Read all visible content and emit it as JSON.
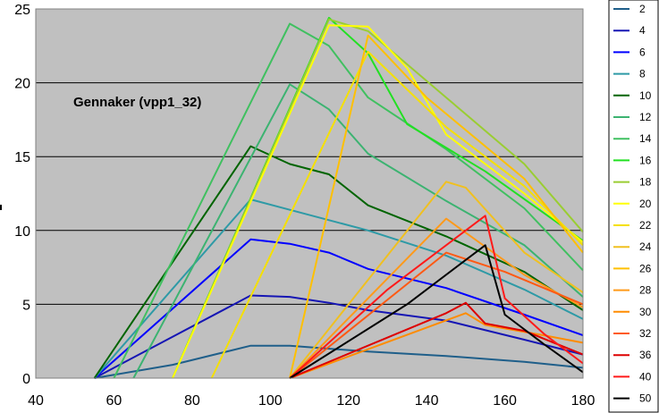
{
  "chart_data": {
    "type": "line",
    "title": "",
    "annotation": "Gennaker (vpp1_32)",
    "xlabel": "",
    "ylabel": "",
    "xlim": [
      40,
      180
    ],
    "ylim": [
      0,
      25
    ],
    "x_ticks": [
      40,
      60,
      80,
      100,
      120,
      140,
      160,
      180
    ],
    "y_ticks": [
      0,
      5,
      10,
      15,
      20,
      25
    ],
    "grid": "horizontal",
    "legend_position": "right",
    "background": "#c0c0c0",
    "series": [
      {
        "name": "2",
        "color": "#1f5f8a",
        "points": [
          [
            55,
            0
          ],
          [
            75,
            0.9
          ],
          [
            95,
            2.2
          ],
          [
            105,
            2.2
          ],
          [
            125,
            1.8
          ],
          [
            145,
            1.5
          ],
          [
            165,
            1.1
          ],
          [
            180,
            0.7
          ]
        ]
      },
      {
        "name": "4",
        "color": "#1616b4",
        "points": [
          [
            55,
            0
          ],
          [
            95,
            5.6
          ],
          [
            105,
            5.5
          ],
          [
            115,
            5.1
          ],
          [
            125,
            4.6
          ],
          [
            145,
            3.9
          ],
          [
            165,
            2.6
          ],
          [
            180,
            1.6
          ]
        ]
      },
      {
        "name": "6",
        "color": "#0000ff",
        "points": [
          [
            55,
            0
          ],
          [
            95,
            9.4
          ],
          [
            105,
            9.1
          ],
          [
            115,
            8.5
          ],
          [
            125,
            7.4
          ],
          [
            145,
            6.1
          ],
          [
            165,
            4.3
          ],
          [
            180,
            2.9
          ]
        ]
      },
      {
        "name": "8",
        "color": "#2e9aa6",
        "points": [
          [
            55,
            0
          ],
          [
            95,
            12.1
          ],
          [
            105,
            11.4
          ],
          [
            125,
            10.0
          ],
          [
            145,
            8.3
          ],
          [
            165,
            6.0
          ],
          [
            180,
            4.0
          ]
        ]
      },
      {
        "name": "10",
        "color": "#006400",
        "points": [
          [
            55,
            0
          ],
          [
            95,
            15.7
          ],
          [
            105,
            14.5
          ],
          [
            115,
            13.8
          ],
          [
            125,
            11.7
          ],
          [
            145,
            9.6
          ],
          [
            165,
            7.2
          ],
          [
            180,
            4.6
          ]
        ]
      },
      {
        "name": "12",
        "color": "#3cb371",
        "points": [
          [
            65,
            0
          ],
          [
            105,
            19.9
          ],
          [
            115,
            18.2
          ],
          [
            125,
            15.2
          ],
          [
            145,
            12.0
          ],
          [
            165,
            9.0
          ],
          [
            180,
            5.5
          ]
        ]
      },
      {
        "name": "14",
        "color": "#40c060",
        "points": [
          [
            60,
            0
          ],
          [
            105,
            24.0
          ],
          [
            115,
            22.5
          ],
          [
            125,
            19.0
          ],
          [
            145,
            15.5
          ],
          [
            165,
            11.5
          ],
          [
            180,
            7.3
          ]
        ]
      },
      {
        "name": "16",
        "color": "#22e022",
        "points": [
          [
            75,
            0
          ],
          [
            115,
            24.4
          ],
          [
            125,
            22.0
          ],
          [
            135,
            17.2
          ],
          [
            155,
            14.0
          ],
          [
            180,
            9.3
          ]
        ]
      },
      {
        "name": "18",
        "color": "#9acd32",
        "points": [
          [
            75,
            0
          ],
          [
            115,
            24.3
          ],
          [
            125,
            23.5
          ],
          [
            145,
            19.0
          ],
          [
            165,
            14.5
          ],
          [
            180,
            9.9
          ]
        ]
      },
      {
        "name": "20",
        "color": "#ffff00",
        "points": [
          [
            75,
            0
          ],
          [
            115,
            23.9
          ],
          [
            125,
            23.8
          ],
          [
            135,
            21.0
          ],
          [
            145,
            16.5
          ],
          [
            165,
            12.5
          ],
          [
            180,
            9.2
          ]
        ]
      },
      {
        "name": "22",
        "color": "#f5e000",
        "points": [
          [
            85,
            0
          ],
          [
            125,
            22.1
          ],
          [
            145,
            17.0
          ],
          [
            165,
            13.0
          ],
          [
            180,
            9.0
          ]
        ]
      },
      {
        "name": "24",
        "color": "#f0c020",
        "points": [
          [
            105,
            0
          ],
          [
            145,
            13.3
          ],
          [
            150,
            12.9
          ],
          [
            165,
            8.5
          ],
          [
            180,
            5.8
          ]
        ]
      },
      {
        "name": "26",
        "color": "#ffc000",
        "points": [
          [
            105,
            0
          ],
          [
            125,
            23.2
          ],
          [
            140,
            19.0
          ],
          [
            165,
            13.5
          ],
          [
            180,
            8.5
          ]
        ]
      },
      {
        "name": "28",
        "color": "#ff9a1a",
        "points": [
          [
            105,
            0
          ],
          [
            145,
            10.8
          ],
          [
            165,
            7.0
          ],
          [
            180,
            4.8
          ]
        ]
      },
      {
        "name": "30",
        "color": "#ff8c00",
        "points": [
          [
            105,
            0
          ],
          [
            150,
            4.4
          ],
          [
            155,
            3.6
          ],
          [
            170,
            2.9
          ],
          [
            180,
            2.4
          ]
        ]
      },
      {
        "name": "32",
        "color": "#ff5a14",
        "points": [
          [
            105,
            0
          ],
          [
            145,
            8.5
          ],
          [
            160,
            7.2
          ],
          [
            180,
            5.0
          ]
        ]
      },
      {
        "name": "36",
        "color": "#dd0000",
        "points": [
          [
            105,
            0
          ],
          [
            145,
            4.4
          ],
          [
            150,
            5.1
          ],
          [
            155,
            3.7
          ],
          [
            165,
            3.2
          ],
          [
            180,
            1.6
          ]
        ]
      },
      {
        "name": "40",
        "color": "#ff1a1a",
        "points": [
          [
            105,
            0
          ],
          [
            130,
            6.0
          ],
          [
            155,
            11.0
          ],
          [
            160,
            5.4
          ],
          [
            170,
            3.0
          ],
          [
            180,
            1.0
          ]
        ]
      },
      {
        "name": "50",
        "color": "#000000",
        "points": [
          [
            105,
            0
          ],
          [
            135,
            5.0
          ],
          [
            155,
            9.0
          ],
          [
            160,
            4.3
          ],
          [
            170,
            2.3
          ],
          [
            180,
            0.4
          ]
        ]
      }
    ]
  }
}
